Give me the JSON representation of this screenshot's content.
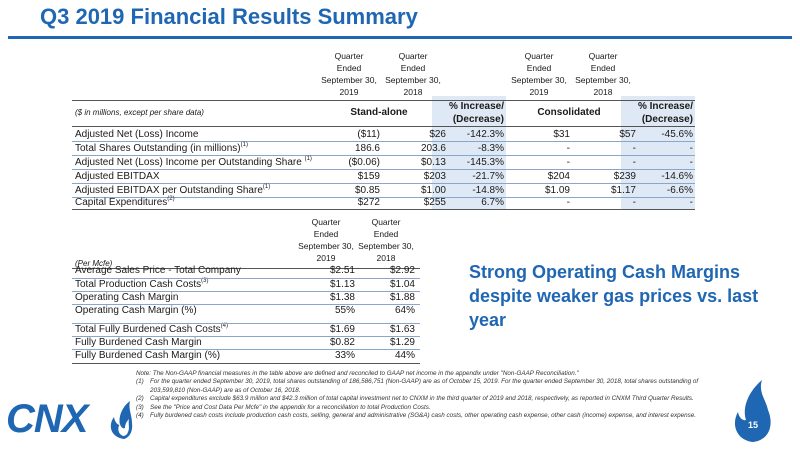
{
  "title": "Q3 2019 Financial Results Summary",
  "table1": {
    "col_headers": [
      "Quarter\nEnded\nSeptember 30,\n2019",
      "Quarter\nEnded\nSeptember 30,\n2018",
      "Quarter\nEnded\nSeptember 30,\n2019",
      "Quarter\nEnded\nSeptember 30,\n2018"
    ],
    "units": "($ in millions, except per share data)",
    "group_standalone": "Stand-alone",
    "group_consolidated": "Consolidated",
    "pct_header_1": "% Increase/\n(Decrease)",
    "pct_header_2": "% Increase/\n(Decrease)",
    "rows": [
      {
        "label": "Adjusted Net (Loss) Income",
        "sup": "",
        "v": [
          "($11)",
          "$26",
          "-142.3%",
          "$31",
          "$57",
          "-45.6%"
        ]
      },
      {
        "label": "Total Shares Outstanding (in millions)",
        "sup": "(1)",
        "v": [
          "186.6",
          "203.6",
          "-8.3%",
          "-",
          "-",
          "-"
        ]
      },
      {
        "label": "Adjusted Net (Loss) Income per Outstanding Share ",
        "sup": "(1)",
        "v": [
          "($0.06)",
          "$0.13",
          "-145.3%",
          "-",
          "-",
          "-"
        ]
      },
      {
        "label": "Adjusted EBITDAX",
        "sup": "",
        "v": [
          "$159",
          "$203",
          "-21.7%",
          "$204",
          "$239",
          "-14.6%"
        ]
      },
      {
        "label": "Adjusted EBITDAX per Outstanding Share",
        "sup": "(1)",
        "v": [
          "$0.85",
          "$1.00",
          "-14.8%",
          "$1.09",
          "$1.17",
          "-6.6%"
        ]
      },
      {
        "label": "Capital Expenditures",
        "sup": "(2)",
        "v": [
          "$272",
          "$255",
          "6.7%",
          "-",
          "-",
          "-"
        ]
      }
    ]
  },
  "table2": {
    "col_headers": [
      "Quarter\nEnded\nSeptember 30,\n2019",
      "Quarter\nEnded\nSeptember 30,\n2018"
    ],
    "units": "(Per Mcfe)",
    "rows": [
      {
        "label": "Average Sales Price - Total Company",
        "sup": "",
        "v": [
          "$2.51",
          "$2.92"
        ]
      },
      {
        "label": "Total Production Cash Costs",
        "sup": "(3)",
        "v": [
          "$1.13",
          "$1.04"
        ]
      },
      {
        "label": "Operating Cash Margin",
        "sup": "",
        "v": [
          "$1.38",
          "$1.88"
        ]
      },
      {
        "label": "Operating Cash Margin (%)",
        "sup": "",
        "v": [
          "55%",
          "64%"
        ]
      },
      {
        "label": "Total Fully Burdened Cash Costs",
        "sup": "(4)",
        "v": [
          "$1.69",
          "$1.63"
        ]
      },
      {
        "label": "Fully Burdened Cash Margin",
        "sup": "",
        "v": [
          "$0.82",
          "$1.29"
        ]
      },
      {
        "label": "Fully Burdened Cash Margin (%)",
        "sup": "",
        "v": [
          "33%",
          "44%"
        ]
      }
    ]
  },
  "callout": "Strong Operating Cash Margins despite weaker gas prices vs. last year",
  "notes": {
    "intro": "Note: The Non-GAAP financial measures in the table above are defined and reconciled to GAAP net income in the appendix under \"Non-GAAP Reconciliation.\"",
    "items": [
      {
        "num": "(1)",
        "text": "For the quarter ended September 30, 2019, total shares outstanding of 186,586,751 (Non-GAAP) are as of October 15, 2019. For the quarter ended September 30, 2018, total shares outstanding of 203,599,810 (Non-GAAP) are as of October 16, 2018."
      },
      {
        "num": "(2)",
        "text": "Capital expenditures exclude $63.9 million and $42.3 million of total capital investment net to CNXM in the third quarter of 2019 and 2018, respectively, as reported in CNXM Third Quarter Results."
      },
      {
        "num": "(3)",
        "text": "See the \"Price and Cost Data Per Mcfe\" in the appendix for a reconciliation to total Production Costs."
      },
      {
        "num": "(4)",
        "text": "Fully burdened cash costs include production cash costs, selling, general and administrative (SG&A) cash costs, other operating cash expense, other cash (income) expense, and interest expense."
      }
    ]
  },
  "logo_text": "CNX",
  "page_number": "15",
  "colors": {
    "brand_blue": "#1f66b3",
    "shade": "#dfe9f5"
  }
}
